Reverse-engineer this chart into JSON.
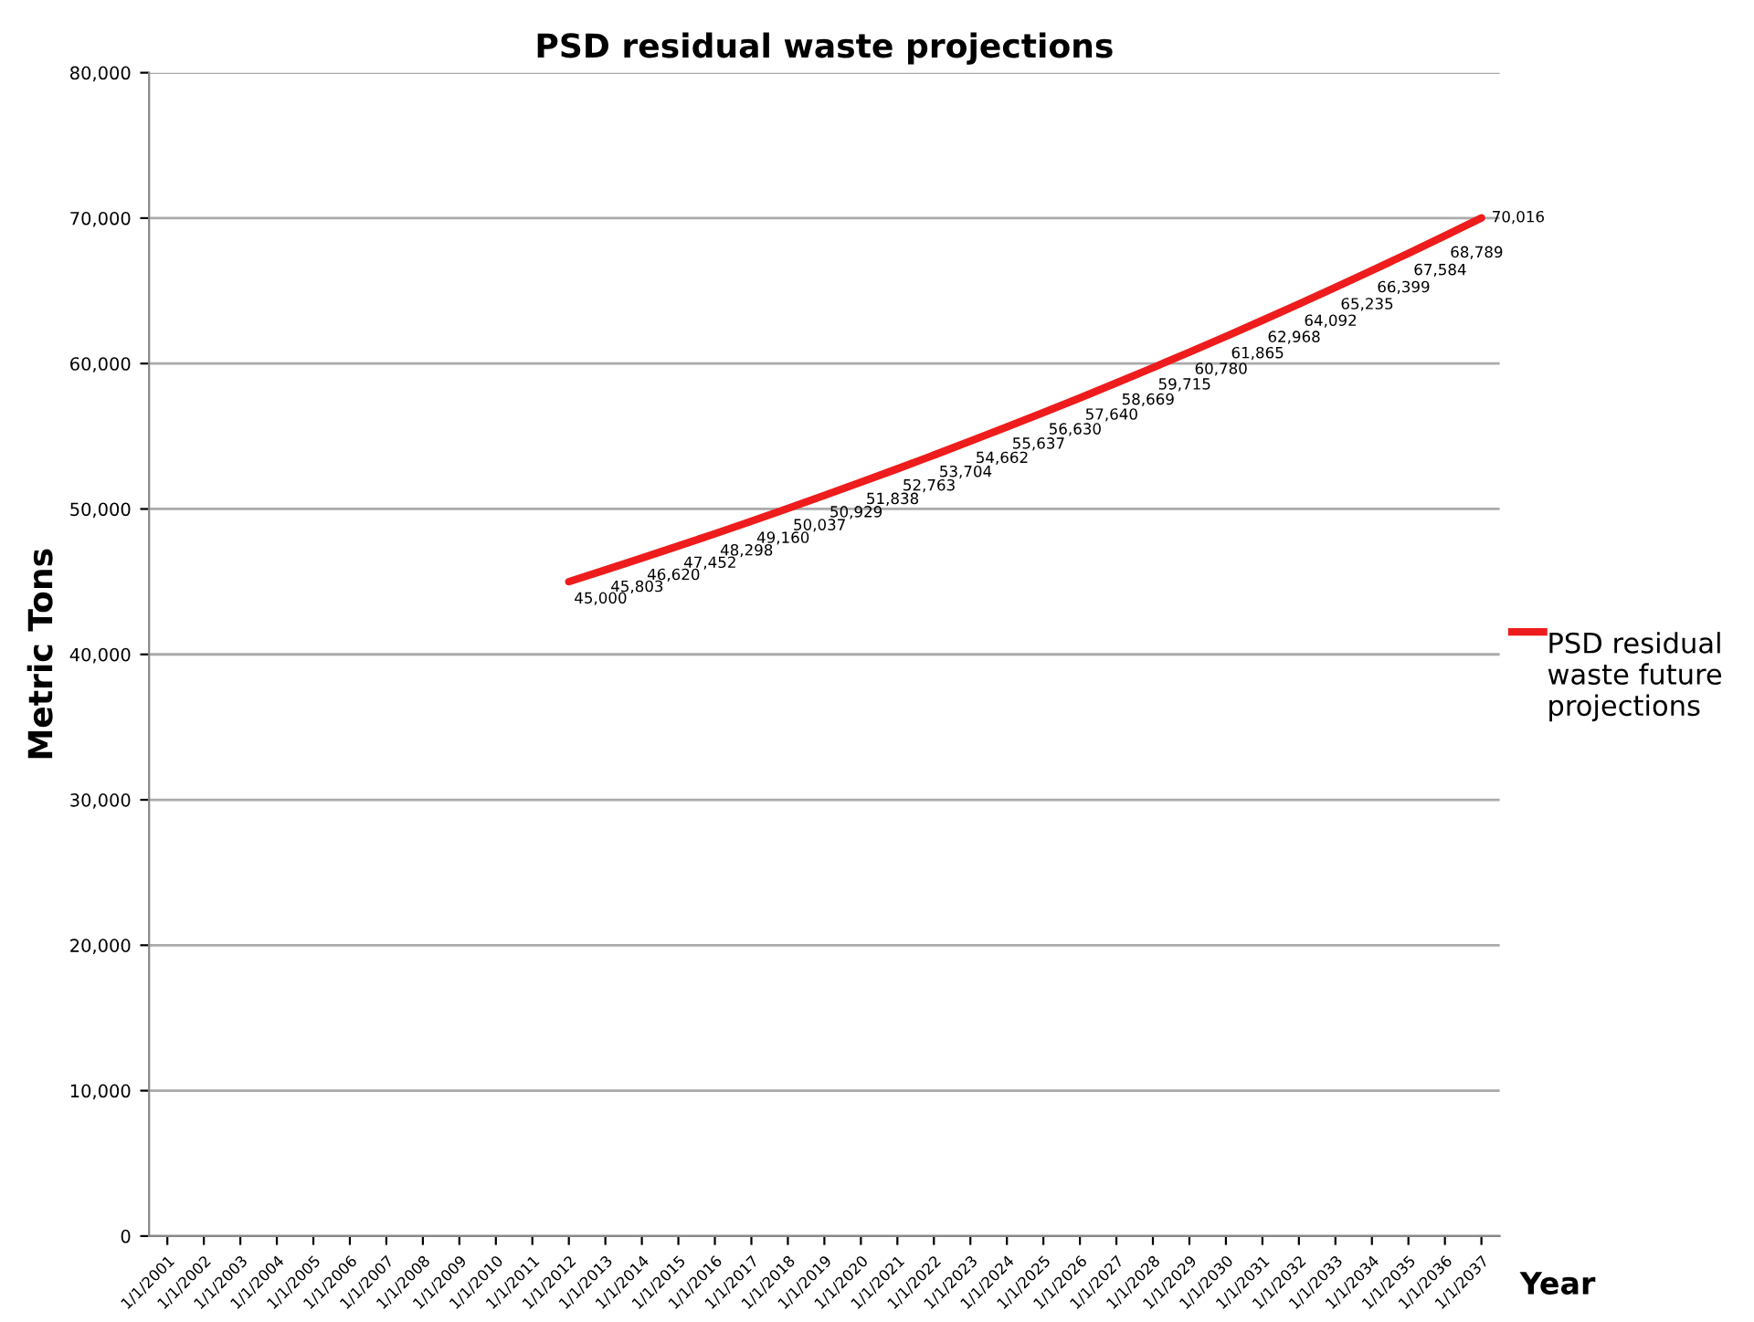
{
  "chart_data": {
    "type": "line",
    "title": "PSD residual waste projections",
    "xlabel": "Year",
    "ylabel": "Metric Tons",
    "categories": [
      "1/1/2001",
      "1/1/2002",
      "1/1/2003",
      "1/1/2004",
      "1/1/2005",
      "1/1/2006",
      "1/1/2007",
      "1/1/2008",
      "1/1/2009",
      "1/1/2010",
      "1/1/2011",
      "1/1/2012",
      "1/1/2013",
      "1/1/2014",
      "1/1/2015",
      "1/1/2016",
      "1/1/2017",
      "1/1/2018",
      "1/1/2019",
      "1/1/2020",
      "1/1/2021",
      "1/1/2022",
      "1/1/2023",
      "1/1/2024",
      "1/1/2025",
      "1/1/2026",
      "1/1/2027",
      "1/1/2028",
      "1/1/2029",
      "1/1/2030",
      "1/1/2031",
      "1/1/2032",
      "1/1/2033",
      "1/1/2034",
      "1/1/2035",
      "1/1/2036",
      "1/1/2037"
    ],
    "series": [
      {
        "name": "PSD residual waste future projections",
        "color": "#ee1c1c",
        "values": [
          null,
          null,
          null,
          null,
          null,
          null,
          null,
          null,
          null,
          null,
          null,
          45000,
          45803,
          46620,
          47452,
          48298,
          49160,
          50037,
          50929,
          51838,
          52763,
          53704,
          54662,
          55637,
          56630,
          57640,
          58669,
          59715,
          60780,
          61865,
          62968,
          64092,
          65235,
          66399,
          67584,
          68789,
          70016
        ],
        "value_labels": [
          null,
          null,
          null,
          null,
          null,
          null,
          null,
          null,
          null,
          null,
          null,
          "45,000",
          "45,803",
          "46,620",
          "47,452",
          "48,298",
          "49,160",
          "50,037",
          "50,929",
          "51,838",
          "52,763",
          "53,704",
          "54,662",
          "55,637",
          "56,630",
          "57,640",
          "58,669",
          "59,715",
          "60,780",
          "61,865",
          "62,968",
          "64,092",
          "65,235",
          "66,399",
          "67,584",
          "68,789",
          "70,016"
        ]
      }
    ],
    "ylim": [
      0,
      80000
    ],
    "yticks": [
      {
        "value": 0,
        "label": "0"
      },
      {
        "value": 10000,
        "label": "10,000"
      },
      {
        "value": 20000,
        "label": "20,000"
      },
      {
        "value": 30000,
        "label": "30,000"
      },
      {
        "value": 40000,
        "label": "40,000"
      },
      {
        "value": 50000,
        "label": "50,000"
      },
      {
        "value": 60000,
        "label": "60,000"
      },
      {
        "value": 70000,
        "label": "70,000"
      },
      {
        "value": 80000,
        "label": "80,000"
      }
    ],
    "grid": "y",
    "legend": "right",
    "marker": "none",
    "line_style": "solid"
  }
}
